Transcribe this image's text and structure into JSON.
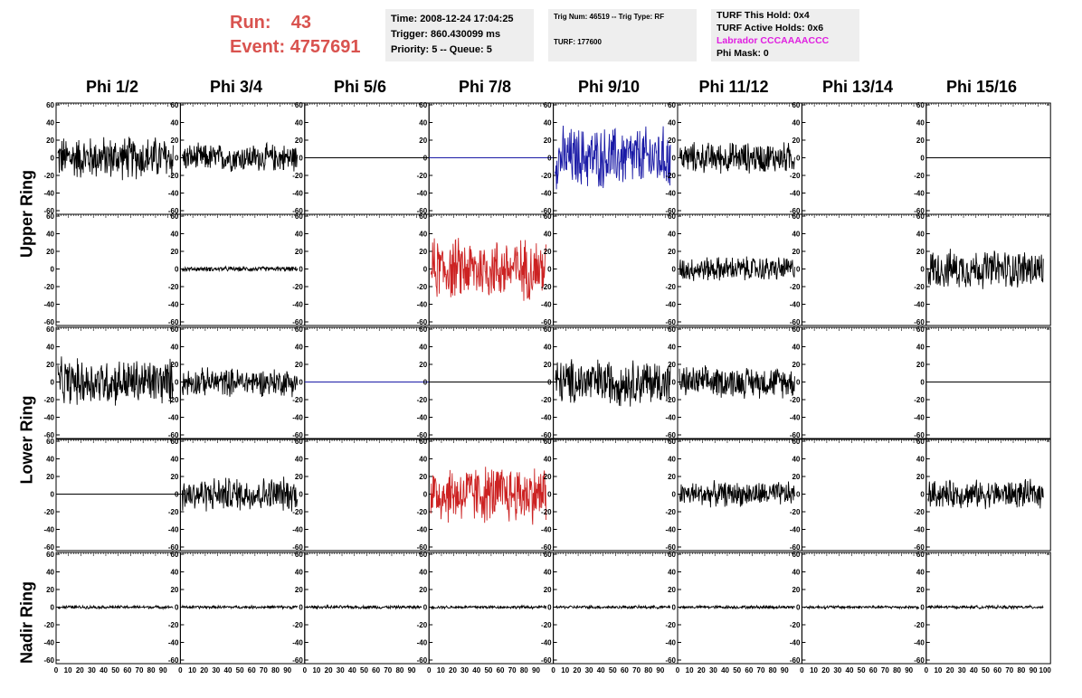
{
  "run_info": {
    "run_label": "Run:",
    "run_value": "43",
    "event_label": "Event:",
    "event_value": "4757691"
  },
  "time_box": {
    "time": "Time: 2008-12-24 17:04:25",
    "trigger": "Trigger: 860.430099 ms",
    "priority": "Priority: 5 -- Queue: 5"
  },
  "trig_box": {
    "trig": "Trig Num: 46519 -- Trig Type: RF",
    "turf": "TURF: 177600"
  },
  "turf_box": {
    "this_hold": "TURF This Hold: 0x4",
    "active_holds": "TURF Active Holds: 0x6",
    "labrador": "Labrador CCCAAAACCC",
    "phi_mask": "Phi Mask: 0"
  },
  "columns": [
    "Phi 1/2",
    "Phi 3/4",
    "Phi 5/6",
    "Phi 7/8",
    "Phi 9/10",
    "Phi 11/12",
    "Phi 13/14",
    "Phi 15/16"
  ],
  "rings": [
    "Upper Ring",
    "Lower Ring",
    "Nadir Ring"
  ],
  "colors": {
    "black": "#000000",
    "blue": "#1a1aa6",
    "red": "#cc2222",
    "run": "#d9534f",
    "labrador": "#e020e0"
  },
  "chart_data": {
    "type": "line",
    "ylim": [
      -60,
      60
    ],
    "xlim": [
      0,
      100
    ],
    "yticks": [
      "60",
      "40",
      "20",
      "0",
      "-20",
      "-40",
      "-60"
    ],
    "xticks": [
      "0",
      "10",
      "20",
      "30",
      "40",
      "50",
      "60",
      "70",
      "80",
      "90",
      "100"
    ],
    "panel_rows": 5,
    "panel_cols": 8,
    "traces": [
      [
        "black-28",
        "black-18",
        "flat-black",
        "flat-blue",
        "blue-40",
        "black-20",
        "none",
        "flat-black"
      ],
      [
        "none",
        "black-3",
        "none",
        "red-40",
        "none",
        "black-16",
        "none",
        "black-25"
      ],
      [
        "black-30",
        "black-18",
        "flat-blue",
        "flat-black",
        "black-30",
        "black-20",
        "none",
        "flat-black"
      ],
      [
        "flat-black",
        "black-22",
        "none",
        "red-38",
        "none",
        "black-16",
        "none",
        "black-18"
      ],
      [
        "black-2",
        "black-2",
        "black-2",
        "black-2",
        "black-2",
        "black-2",
        "black-2",
        "black-2"
      ]
    ]
  }
}
